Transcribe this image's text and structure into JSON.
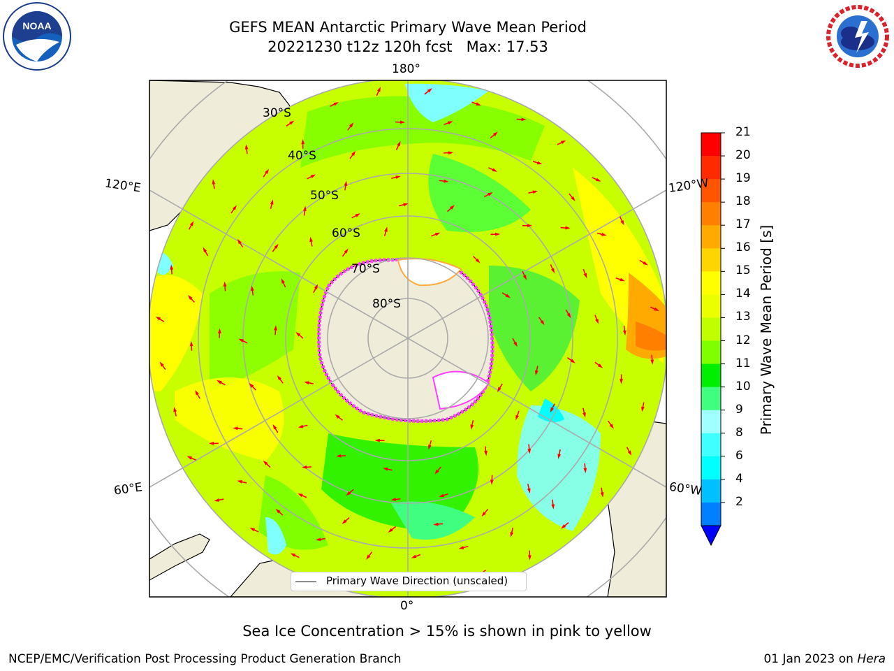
{
  "header": {
    "title_line1": "GEFS MEAN Antarctic Primary Wave Mean Period",
    "title_line2": "20221230 t12z 120h fcst   Max: 17.53"
  },
  "logos": {
    "left": "noaa-logo",
    "right": "nws-logo"
  },
  "map": {
    "meridian_labels": {
      "top": "180°",
      "bottom": "0°",
      "upper_left": "120°E",
      "upper_right": "120°W",
      "lower_left": "60°E",
      "lower_right": "60°W"
    },
    "latitude_labels": [
      "30°S",
      "40°S",
      "50°S",
      "60°S",
      "70°S",
      "80°S"
    ],
    "legend_label": "Primary Wave Direction (unscaled)"
  },
  "colorbar": {
    "title": "Primary Wave Mean Period [s]",
    "ticks": [
      "21",
      "20",
      "19",
      "18",
      "17",
      "16",
      "15",
      "14",
      "13",
      "12",
      "11",
      "10",
      "9",
      "8",
      "6",
      "4",
      "2"
    ],
    "colors": [
      "#ff0000",
      "#ff2a00",
      "#ff5500",
      "#ff8000",
      "#ffaa00",
      "#ffd500",
      "#ffff00",
      "#ecff00",
      "#c0ff00",
      "#80ff00",
      "#00ee00",
      "#40ff80",
      "#a0ffff",
      "#40ffff",
      "#00ffff",
      "#00c0ff",
      "#0080ff",
      "#0000ff"
    ]
  },
  "footer": {
    "note": "Sea Ice Concentration > 15% is shown in pink to yellow",
    "left": "NCEP/EMC/Verification Post Processing Product Generation Branch",
    "right_date": "01 Jan 2023 on ",
    "right_machine": "Hera"
  }
}
